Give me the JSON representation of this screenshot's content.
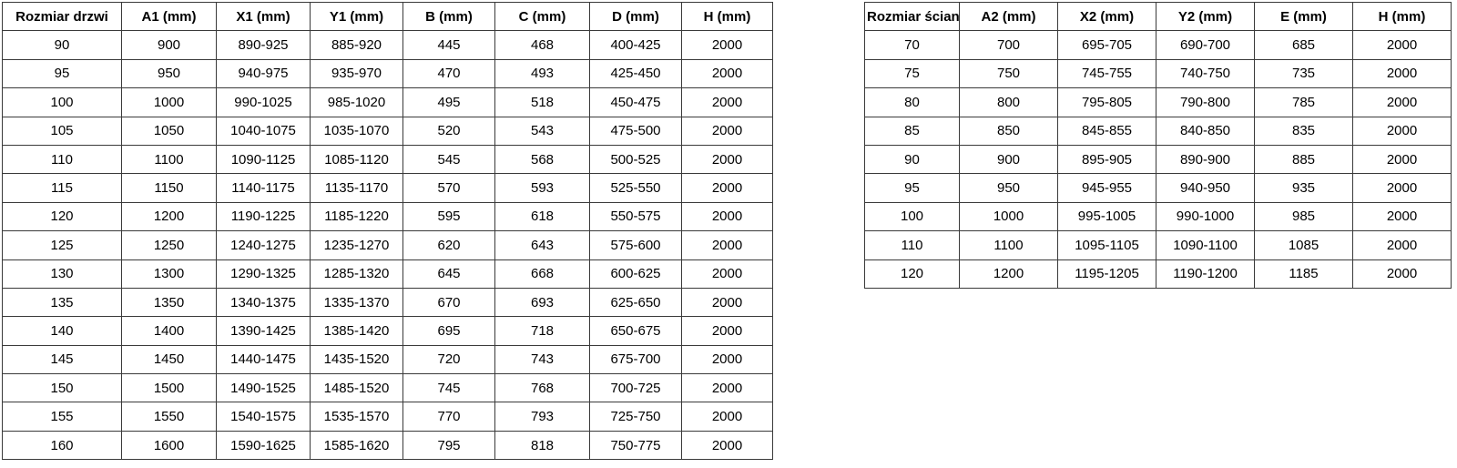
{
  "colors": {
    "background": "#ffffff",
    "border": "#3a3a3a",
    "text": "#000000"
  },
  "tables": [
    {
      "name": "door-size-table",
      "headers": [
        "Rozmiar drzwi",
        "A1 (mm)",
        "X1 (mm)",
        "Y1 (mm)",
        "B (mm)",
        "C (mm)",
        "D (mm)",
        "H (mm)"
      ],
      "rows": [
        [
          "90",
          "900",
          "890-925",
          "885-920",
          "445",
          "468",
          "400-425",
          "2000"
        ],
        [
          "95",
          "950",
          "940-975",
          "935-970",
          "470",
          "493",
          "425-450",
          "2000"
        ],
        [
          "100",
          "1000",
          "990-1025",
          "985-1020",
          "495",
          "518",
          "450-475",
          "2000"
        ],
        [
          "105",
          "1050",
          "1040-1075",
          "1035-1070",
          "520",
          "543",
          "475-500",
          "2000"
        ],
        [
          "110",
          "1100",
          "1090-1125",
          "1085-1120",
          "545",
          "568",
          "500-525",
          "2000"
        ],
        [
          "115",
          "1150",
          "1140-1175",
          "1135-1170",
          "570",
          "593",
          "525-550",
          "2000"
        ],
        [
          "120",
          "1200",
          "1190-1225",
          "1185-1220",
          "595",
          "618",
          "550-575",
          "2000"
        ],
        [
          "125",
          "1250",
          "1240-1275",
          "1235-1270",
          "620",
          "643",
          "575-600",
          "2000"
        ],
        [
          "130",
          "1300",
          "1290-1325",
          "1285-1320",
          "645",
          "668",
          "600-625",
          "2000"
        ],
        [
          "135",
          "1350",
          "1340-1375",
          "1335-1370",
          "670",
          "693",
          "625-650",
          "2000"
        ],
        [
          "140",
          "1400",
          "1390-1425",
          "1385-1420",
          "695",
          "718",
          "650-675",
          "2000"
        ],
        [
          "145",
          "1450",
          "1440-1475",
          "1435-1520",
          "720",
          "743",
          "675-700",
          "2000"
        ],
        [
          "150",
          "1500",
          "1490-1525",
          "1485-1520",
          "745",
          "768",
          "700-725",
          "2000"
        ],
        [
          "155",
          "1550",
          "1540-1575",
          "1535-1570",
          "770",
          "793",
          "725-750",
          "2000"
        ],
        [
          "160",
          "1600",
          "1590-1625",
          "1585-1620",
          "795",
          "818",
          "750-775",
          "2000"
        ]
      ]
    },
    {
      "name": "wall-size-table",
      "headers": [
        "Rozmiar ścianki",
        "A2 (mm)",
        "X2 (mm)",
        "Y2 (mm)",
        "E (mm)",
        "H (mm)"
      ],
      "rows": [
        [
          "70",
          "700",
          "695-705",
          "690-700",
          "685",
          "2000"
        ],
        [
          "75",
          "750",
          "745-755",
          "740-750",
          "735",
          "2000"
        ],
        [
          "80",
          "800",
          "795-805",
          "790-800",
          "785",
          "2000"
        ],
        [
          "85",
          "850",
          "845-855",
          "840-850",
          "835",
          "2000"
        ],
        [
          "90",
          "900",
          "895-905",
          "890-900",
          "885",
          "2000"
        ],
        [
          "95",
          "950",
          "945-955",
          "940-950",
          "935",
          "2000"
        ],
        [
          "100",
          "1000",
          "995-1005",
          "990-1000",
          "985",
          "2000"
        ],
        [
          "110",
          "1100",
          "1095-1105",
          "1090-1100",
          "1085",
          "2000"
        ],
        [
          "120",
          "1200",
          "1195-1205",
          "1190-1200",
          "1185",
          "2000"
        ]
      ]
    }
  ]
}
